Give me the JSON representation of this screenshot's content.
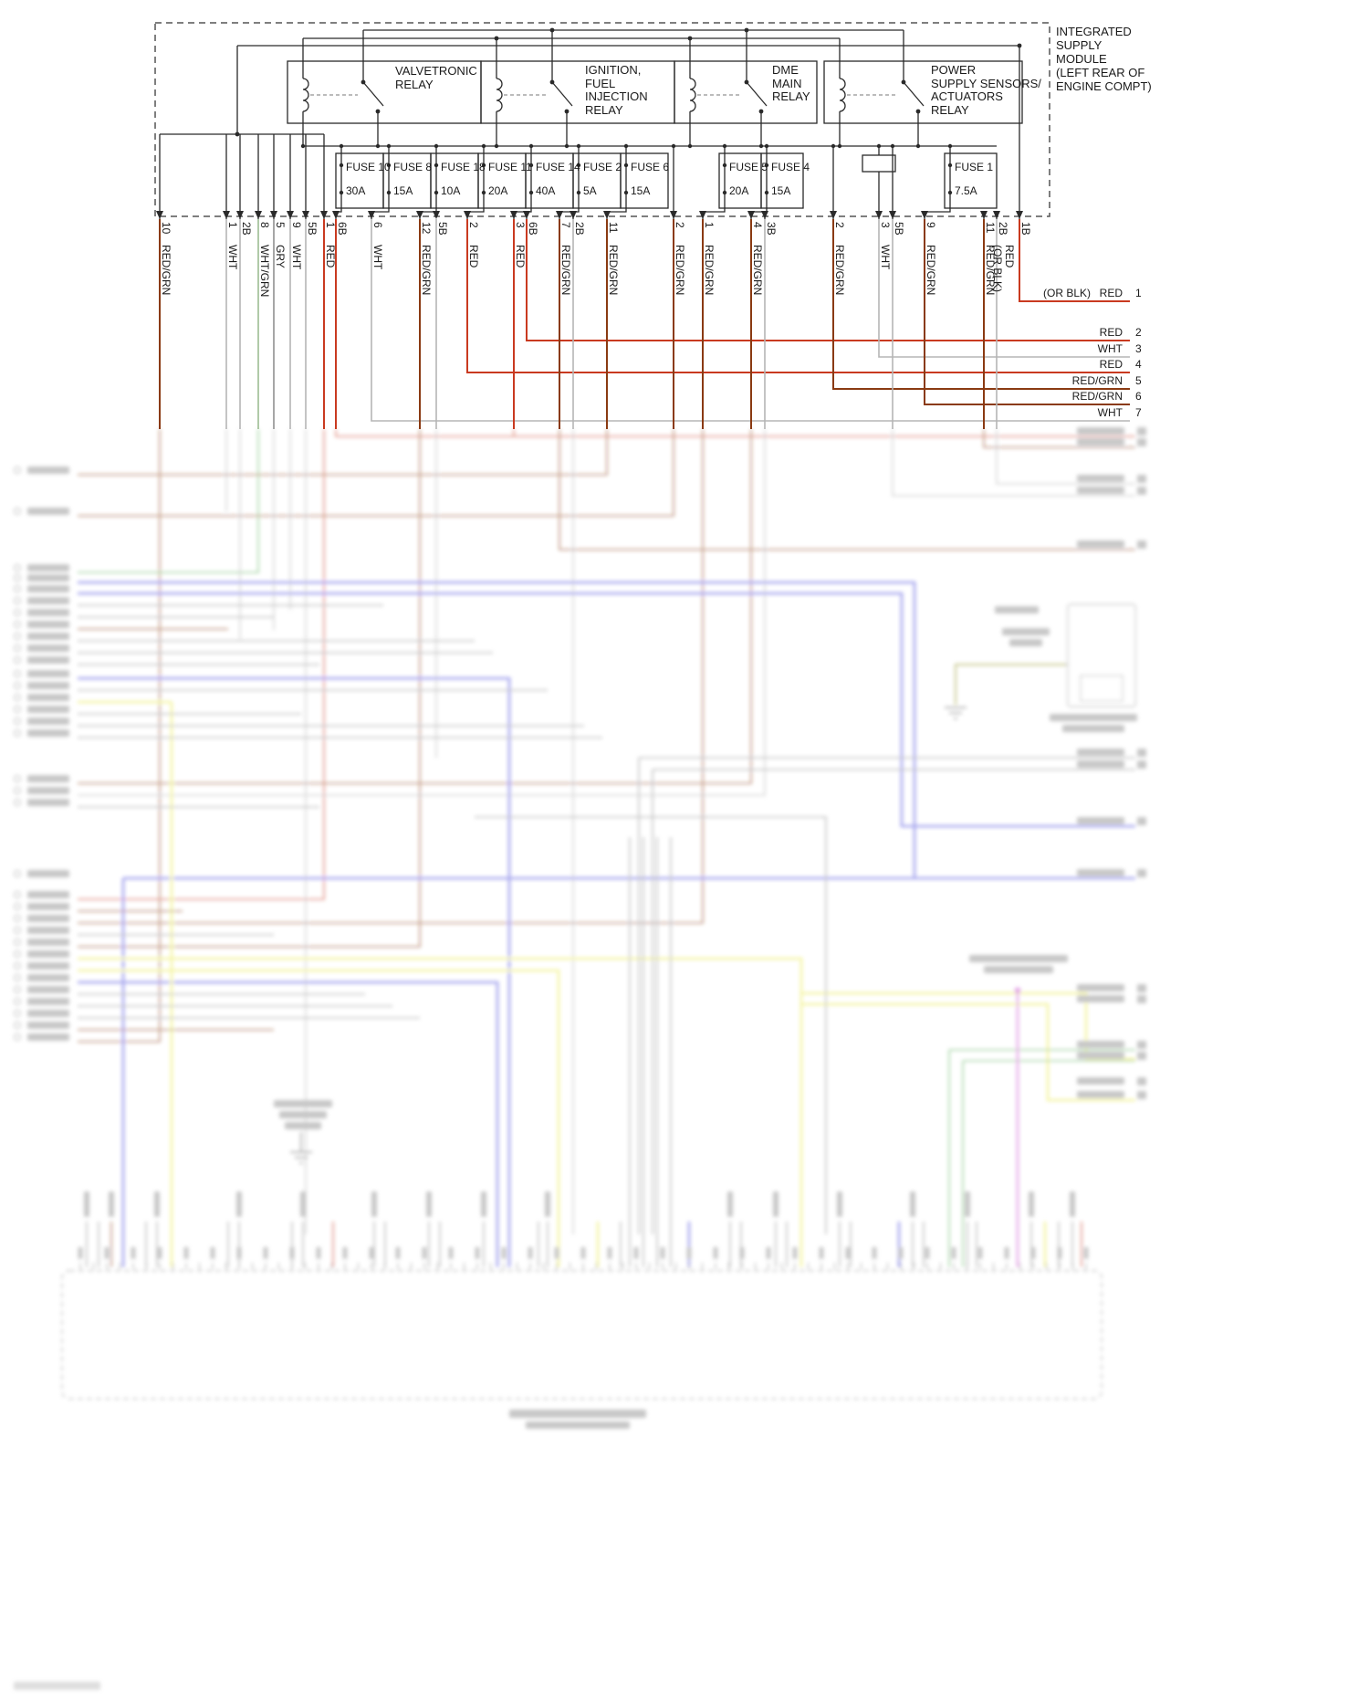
{
  "module": {
    "label_lines": [
      "INTEGRATED",
      "SUPPLY",
      "MODULE",
      "(LEFT REAR OF",
      "ENGINE COMPT)"
    ]
  },
  "relays": [
    {
      "label_lines": [
        "VALVETRONIC",
        "RELAY"
      ]
    },
    {
      "label_lines": [
        "IGNITION,",
        "FUEL",
        "INJECTION",
        "RELAY"
      ]
    },
    {
      "label_lines": [
        "DME",
        "MAIN",
        "RELAY"
      ]
    },
    {
      "label_lines": [
        "POWER",
        "SUPPLY SENSORS/",
        "ACTUATORS",
        "RELAY"
      ]
    }
  ],
  "fuses": [
    {
      "name": "FUSE 10",
      "rating": "30A"
    },
    {
      "name": "FUSE 8",
      "rating": "15A"
    },
    {
      "name": "FUSE 18",
      "rating": "10A"
    },
    {
      "name": "FUSE 11",
      "rating": "20A"
    },
    {
      "name": "FUSE 14",
      "rating": "40A"
    },
    {
      "name": "FUSE 2",
      "rating": "5A"
    },
    {
      "name": "FUSE 6",
      "rating": "15A"
    },
    {
      "name": "FUSE 5",
      "rating": "20A"
    },
    {
      "name": "FUSE 4",
      "rating": "15A"
    },
    {
      "name": "FUSE 1",
      "rating": "7.5A"
    }
  ],
  "connector_pins": [
    {
      "pin": "10",
      "wire_color": "RED/GRN"
    },
    {
      "pin": "1",
      "wire_color": "WHT"
    },
    {
      "pin": "2B",
      "wire_color": null
    },
    {
      "pin": "8",
      "wire_color": "WHT/GRN"
    },
    {
      "pin": "5",
      "wire_color": "GRY"
    },
    {
      "pin": "9",
      "wire_color": "WHT"
    },
    {
      "pin": "5B",
      "wire_color": null
    },
    {
      "pin": "1",
      "wire_color": "RED"
    },
    {
      "pin": "6B",
      "wire_color": null
    },
    {
      "pin": "6",
      "wire_color": "WHT"
    },
    {
      "pin": "12",
      "wire_color": "RED/GRN"
    },
    {
      "pin": "5B",
      "wire_color": null
    },
    {
      "pin": "2",
      "wire_color": "RED"
    },
    {
      "pin": "3",
      "wire_color": "RED"
    },
    {
      "pin": "6B",
      "wire_color": null
    },
    {
      "pin": "7",
      "wire_color": "RED/GRN"
    },
    {
      "pin": "2B",
      "wire_color": null
    },
    {
      "pin": "11",
      "wire_color": "RED/GRN"
    },
    {
      "pin": "2",
      "wire_color": "RED/GRN"
    },
    {
      "pin": "1",
      "wire_color": "RED/GRN"
    },
    {
      "pin": "4",
      "wire_color": "RED/GRN"
    },
    {
      "pin": "3B",
      "wire_color": null
    },
    {
      "pin": "2",
      "wire_color": "RED/GRN"
    },
    {
      "pin": "3",
      "wire_color": "WHT"
    },
    {
      "pin": "5B",
      "wire_color": null
    },
    {
      "pin": "9",
      "wire_color": "RED/GRN"
    },
    {
      "pin": "11",
      "wire_color": "RED/GRN"
    },
    {
      "pin": "2B",
      "wire_color": null
    },
    {
      "pin": "1B",
      "wire_color": null
    }
  ],
  "vertical_label_1b": [
    "(OR BLK)",
    "RED"
  ],
  "right_rows": [
    {
      "prefix": "(OR BLK)",
      "label": "RED",
      "num": "1"
    },
    {
      "prefix": null,
      "label": "RED",
      "num": "2"
    },
    {
      "prefix": null,
      "label": "WHT",
      "num": "3"
    },
    {
      "prefix": null,
      "label": "RED",
      "num": "4"
    },
    {
      "prefix": null,
      "label": "RED/GRN",
      "num": "5"
    },
    {
      "prefix": null,
      "label": "RED/GRN",
      "num": "6"
    },
    {
      "prefix": null,
      "label": "WHT",
      "num": "7"
    }
  ],
  "colors": {
    "red": "#c93a20",
    "red_grn": "#8a3a12",
    "wht": "#b5b5b5",
    "gry": "#8f8f8f",
    "wht_grn": "#9dbd92",
    "blue": "#5c5ce0",
    "yellow": "#ecec5a",
    "green": "#58b058",
    "magenta": "#cf5fd3",
    "olive": "#9d9d3a",
    "black": "#2a2a2a"
  }
}
